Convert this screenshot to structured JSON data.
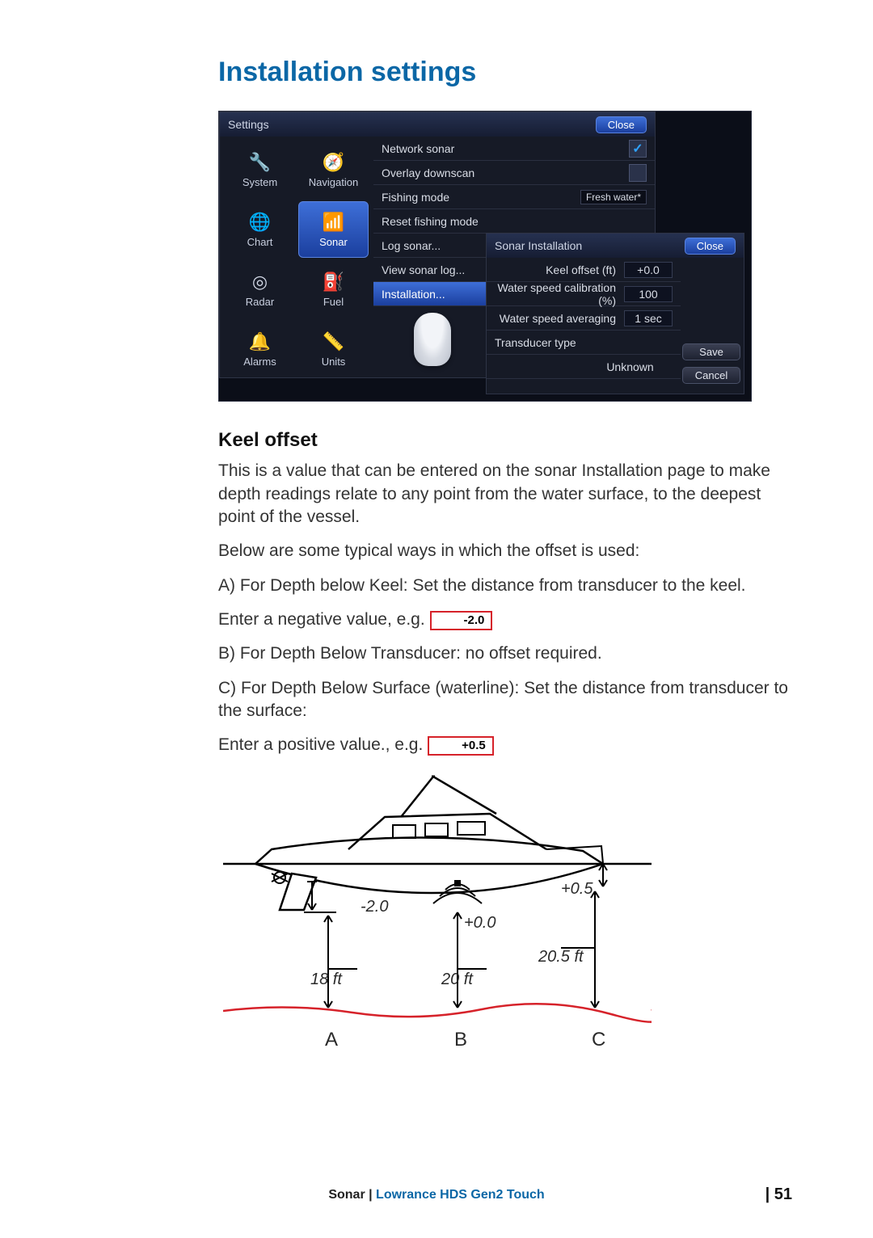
{
  "title": "Installation settings",
  "screenshot": {
    "settings": {
      "title": "Settings",
      "close": "Close",
      "grid": [
        {
          "label": "System",
          "icon": "🔧"
        },
        {
          "label": "Navigation",
          "icon": "🧭"
        },
        {
          "label": "Chart",
          "icon": "🌐"
        },
        {
          "label": "Sonar",
          "icon": "📶",
          "selected": true
        },
        {
          "label": "Radar",
          "icon": "◎"
        },
        {
          "label": "Fuel",
          "icon": "⛽"
        },
        {
          "label": "Alarms",
          "icon": "🔔"
        },
        {
          "label": "Units",
          "icon": "📏"
        }
      ],
      "list": [
        {
          "label": "Network sonar",
          "control": "check",
          "checked": true
        },
        {
          "label": "Overlay downscan",
          "control": "check",
          "checked": false
        },
        {
          "label": "Fishing mode",
          "control": "drop",
          "value": "Fresh water*"
        },
        {
          "label": "Reset fishing mode"
        },
        {
          "label": "Log sonar..."
        },
        {
          "label": "View sonar log..."
        },
        {
          "label": "Installation...",
          "selected": true
        }
      ]
    },
    "install": {
      "title": "Sonar Installation",
      "close": "Close",
      "save": "Save",
      "cancel": "Cancel",
      "rows": [
        {
          "label": "Keel offset (ft)",
          "value": "+0.0"
        },
        {
          "label": "Water speed calibration (%)",
          "value": "100"
        },
        {
          "label": "Water speed averaging",
          "value": "1 sec"
        },
        {
          "label": "Transducer type",
          "value": "Unknown",
          "full": true
        }
      ]
    }
  },
  "subhead": "Keel offset",
  "p1": "This is a value that can be entered on the sonar Installation page to make depth readings relate to any point from the water surface, to the deepest point of the vessel.",
  "p2": "Below are some typical ways in which the offset is used:",
  "p3": "A) For Depth below Keel: Set the distance from transducer to the keel.",
  "p4a": "Enter a negative value, e.g. ",
  "p4box": "-2.0",
  "p5": "B) For Depth Below Transducer: no offset required.",
  "p6": "C) For Depth Below Surface (waterline): Set the distance from trans­ducer to the surface:",
  "p7a": "Enter a positive value., e.g. ",
  "p7box": "+0.5",
  "diagram": {
    "offsets": {
      "A": "-2.0",
      "B": "+0.0",
      "C": "+0.5"
    },
    "depths": {
      "A": "18 ft",
      "B": "20 ft",
      "C": "20.5 ft"
    },
    "letters": {
      "A": "A",
      "B": "B",
      "C": "C"
    }
  },
  "footer": {
    "section": "Sonar",
    "sep": " | ",
    "product": "Lowrance HDS Gen2 Touch"
  },
  "page": "| 51"
}
